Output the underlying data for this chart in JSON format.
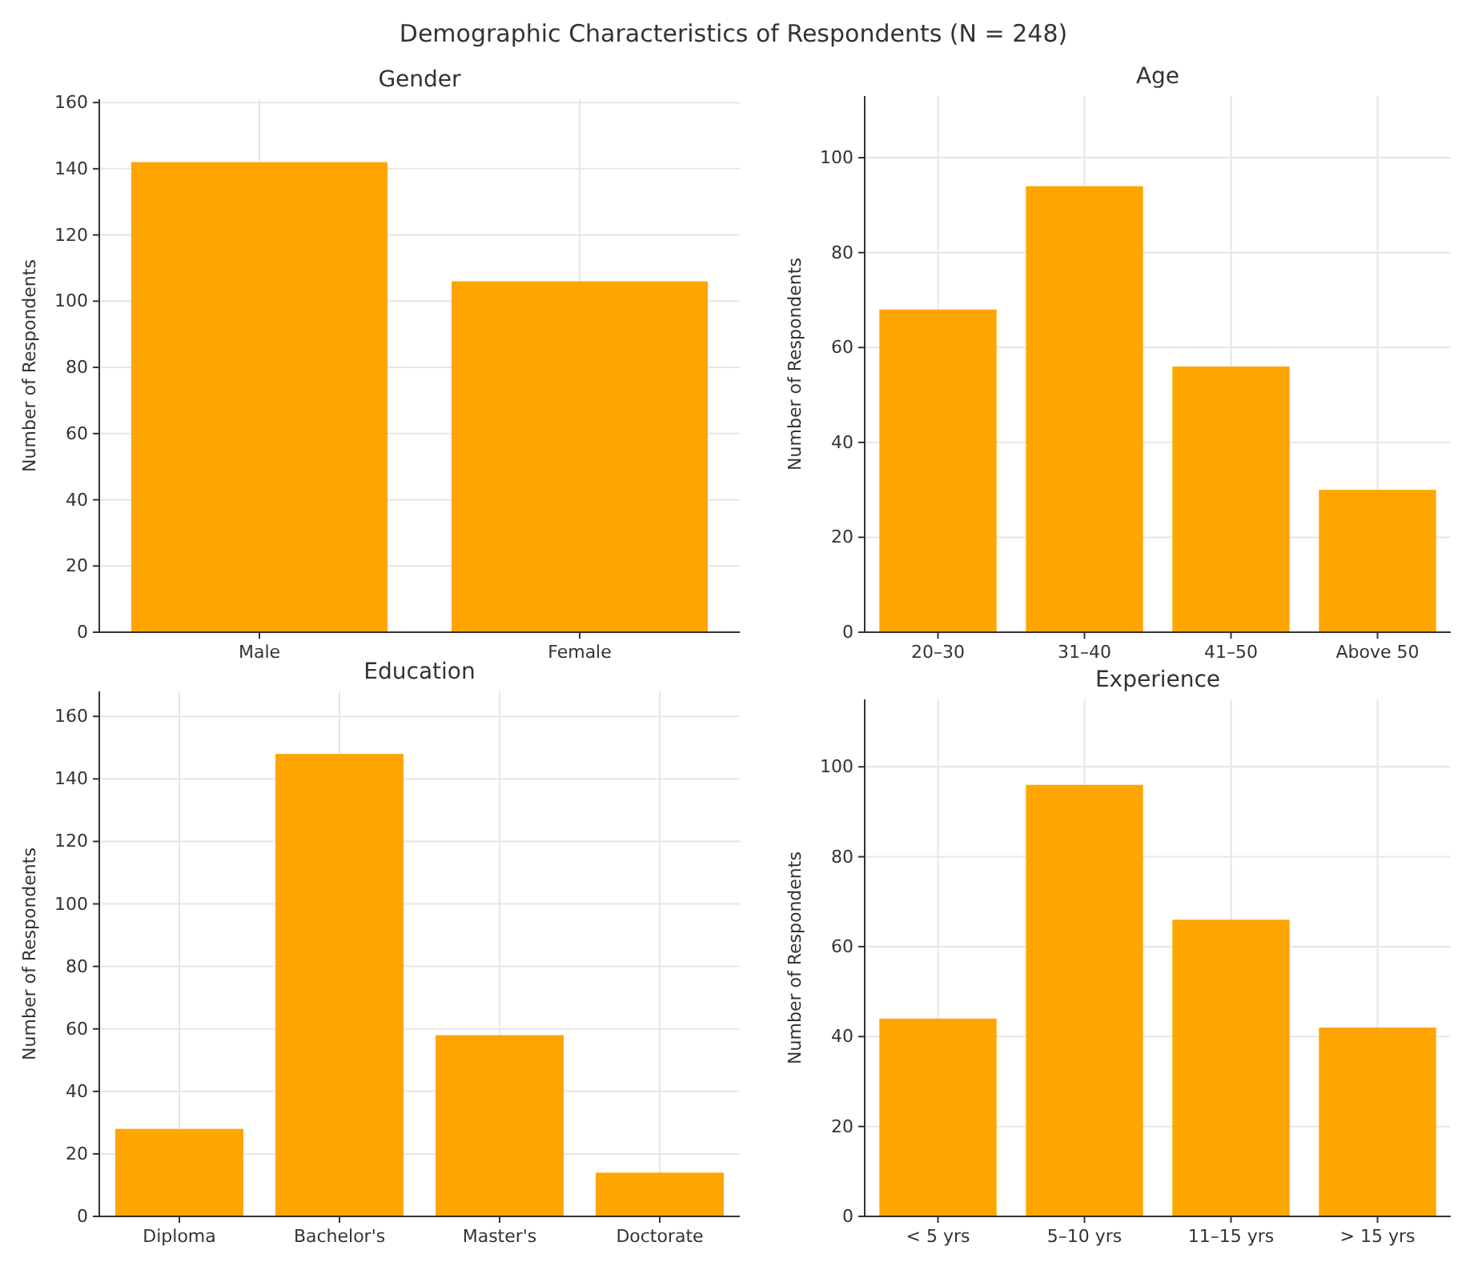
{
  "chart_data": [
    {
      "type": "bar",
      "title": "Gender",
      "annotations": [
        "Demographic Characteristics of Respondents (N = 248)"
      ],
      "ylabel": "Number of Respondents",
      "categories": [
        "Male",
        "Female"
      ],
      "values": [
        142,
        106
      ],
      "color": "#ffa500",
      "ylim": [
        0,
        161
      ],
      "yticks": [
        0,
        20,
        40,
        60,
        80,
        100,
        120,
        140,
        160
      ],
      "grid": true
    },
    {
      "type": "bar",
      "title": "Age",
      "ylabel": "Number of Respondents",
      "categories": [
        "20–30",
        "31–40",
        "41–50",
        "Above 50"
      ],
      "values": [
        68,
        94,
        56,
        30
      ],
      "color": "#ffa500",
      "ylim": [
        0,
        113
      ],
      "yticks": [
        0,
        20,
        40,
        60,
        80,
        100
      ],
      "grid": true
    },
    {
      "type": "bar",
      "title": "Education",
      "ylabel": "Number of Respondents",
      "categories": [
        "Diploma",
        "Bachelor's",
        "Master's",
        "Doctorate"
      ],
      "values": [
        28,
        148,
        58,
        14
      ],
      "color": "#ffa500",
      "ylim": [
        0,
        168
      ],
      "yticks": [
        0,
        20,
        40,
        60,
        80,
        100,
        120,
        140,
        160
      ],
      "grid": true
    },
    {
      "type": "bar",
      "title": "Experience",
      "ylabel": "Number of Respondents",
      "categories": [
        "< 5 yrs",
        "5–10 yrs",
        "11–15 yrs",
        "> 15 yrs"
      ],
      "values": [
        44,
        96,
        66,
        42
      ],
      "color": "#ffa500",
      "ylim": [
        0,
        115
      ],
      "yticks": [
        0,
        20,
        40,
        60,
        80,
        100
      ],
      "grid": true
    }
  ]
}
